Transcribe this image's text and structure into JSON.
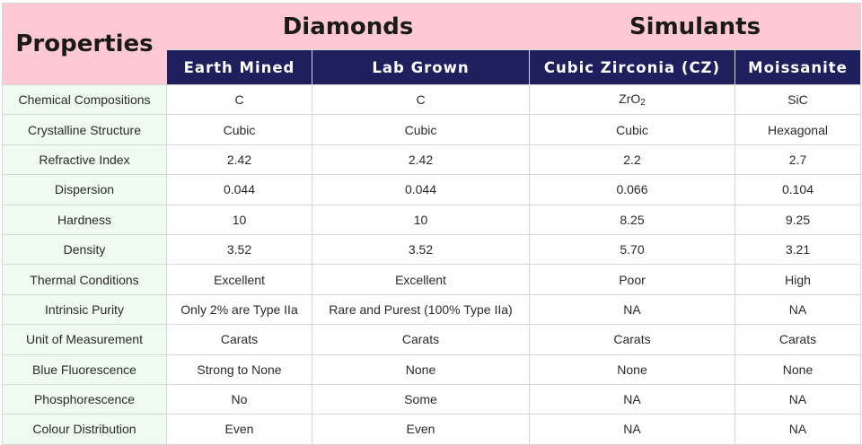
{
  "header": {
    "properties": "Properties",
    "groups": [
      {
        "label": "Diamonds"
      },
      {
        "label": "Simulants"
      }
    ],
    "columns": [
      "Earth Mined",
      "Lab Grown",
      "Cubic Zirconia (CZ)",
      "Moissanite"
    ]
  },
  "formula": {
    "zr": "ZrO",
    "sub": "2"
  },
  "rows": [
    {
      "label": "Chemical Compositions",
      "values": [
        "C",
        "C",
        "ZrO2",
        "SiC"
      ]
    },
    {
      "label": "Crystalline Structure",
      "values": [
        "Cubic",
        "Cubic",
        "Cubic",
        "Hexagonal"
      ]
    },
    {
      "label": "Refractive Index",
      "values": [
        "2.42",
        "2.42",
        "2.2",
        "2.7"
      ]
    },
    {
      "label": "Dispersion",
      "values": [
        "0.044",
        "0.044",
        "0.066",
        "0.104"
      ]
    },
    {
      "label": "Hardness",
      "values": [
        "10",
        "10",
        "8.25",
        "9.25"
      ]
    },
    {
      "label": "Density",
      "values": [
        "3.52",
        "3.52",
        "5.70",
        "3.21"
      ]
    },
    {
      "label": "Thermal Conditions",
      "values": [
        "Excellent",
        "Excellent",
        "Poor",
        "High"
      ]
    },
    {
      "label": "Intrinsic Purity",
      "values": [
        "Only 2% are Type IIa",
        "Rare and Purest (100% Type IIa)",
        "NA",
        "NA"
      ]
    },
    {
      "label": "Unit of Measurement",
      "values": [
        "Carats",
        "Carats",
        "Carats",
        "Carats"
      ]
    },
    {
      "label": "Blue Fluorescence",
      "values": [
        "Strong to None",
        "None",
        "None",
        "None"
      ]
    },
    {
      "label": "Phosphorescence",
      "values": [
        "No",
        "Some",
        "NA",
        "NA"
      ]
    },
    {
      "label": "Colour Distribution",
      "values": [
        "Even",
        "Even",
        "NA",
        "NA"
      ]
    }
  ]
}
